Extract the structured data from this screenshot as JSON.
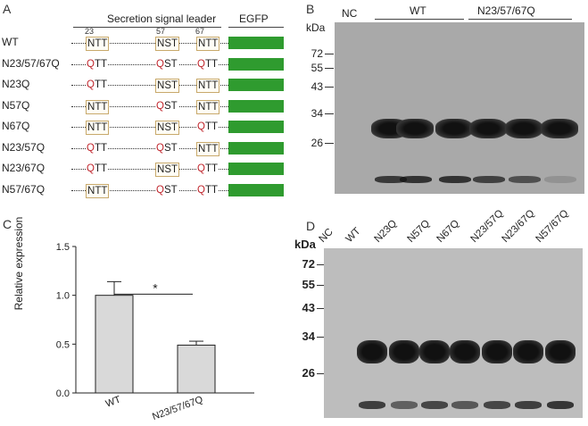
{
  "panels": {
    "a": "A",
    "b": "B",
    "c": "C",
    "d": "D"
  },
  "panel_a": {
    "header_leader": "Secretion signal leader",
    "header_egfp": "EGFP",
    "positions": [
      "23",
      "57",
      "67"
    ],
    "rows": [
      {
        "label": "WT",
        "s1": {
          "text": "NTT",
          "boxed": true
        },
        "s2": {
          "text": "NST",
          "boxed": true
        },
        "s3": {
          "text": "NTT",
          "boxed": true
        }
      },
      {
        "label": "N23/57/67Q",
        "s1": {
          "text": "QTT",
          "boxed": false
        },
        "s2": {
          "text": "QST",
          "boxed": false
        },
        "s3": {
          "text": "QTT",
          "boxed": false
        }
      },
      {
        "label": "N23Q",
        "s1": {
          "text": "QTT",
          "boxed": false
        },
        "s2": {
          "text": "NST",
          "boxed": true
        },
        "s3": {
          "text": "NTT",
          "boxed": true
        }
      },
      {
        "label": "N57Q",
        "s1": {
          "text": "NTT",
          "boxed": true
        },
        "s2": {
          "text": "QST",
          "boxed": false
        },
        "s3": {
          "text": "NTT",
          "boxed": true
        }
      },
      {
        "label": "N67Q",
        "s1": {
          "text": "NTT",
          "boxed": true
        },
        "s2": {
          "text": "NST",
          "boxed": true
        },
        "s3": {
          "text": "QTT",
          "boxed": false
        }
      },
      {
        "label": "N23/57Q",
        "s1": {
          "text": "QTT",
          "boxed": false
        },
        "s2": {
          "text": "QST",
          "boxed": false
        },
        "s3": {
          "text": "NTT",
          "boxed": true
        }
      },
      {
        "label": "N23/67Q",
        "s1": {
          "text": "QTT",
          "boxed": false
        },
        "s2": {
          "text": "NST",
          "boxed": true
        },
        "s3": {
          "text": "QTT",
          "boxed": false
        }
      },
      {
        "label": "N57/67Q",
        "s1": {
          "text": "NTT",
          "boxed": true
        },
        "s2": {
          "text": "QST",
          "boxed": false
        },
        "s3": {
          "text": "QTT",
          "boxed": false
        }
      }
    ],
    "colors": {
      "egfp": "#2f9b2f",
      "mutation": "#c0262d",
      "box": "#c8a96b"
    }
  },
  "panel_b": {
    "kda": "kDa",
    "nc": "NC",
    "group_wt": "WT",
    "group_mut": "N23/57/67Q",
    "markers": [
      "72",
      "55",
      "43",
      "34",
      "26"
    ]
  },
  "panel_d": {
    "kda": "kDa",
    "lanes": [
      "NC",
      "WT",
      "N23Q",
      "N57Q",
      "N67Q",
      "N23/57Q",
      "N23/67Q",
      "N57/67Q"
    ],
    "markers": [
      "72",
      "55",
      "43",
      "34",
      "26"
    ]
  },
  "chart_data": {
    "type": "bar",
    "categories": [
      "WT",
      "N23/57/67Q"
    ],
    "values": [
      1.0,
      0.49
    ],
    "errors": [
      0.14,
      0.04
    ],
    "ylabel": "Relative expression",
    "ylim": [
      0,
      1.5
    ],
    "yticks": [
      "0.0",
      "0.5",
      "1.0",
      "1.5"
    ],
    "significance": "*",
    "bar_color": "#d9d9d9"
  }
}
